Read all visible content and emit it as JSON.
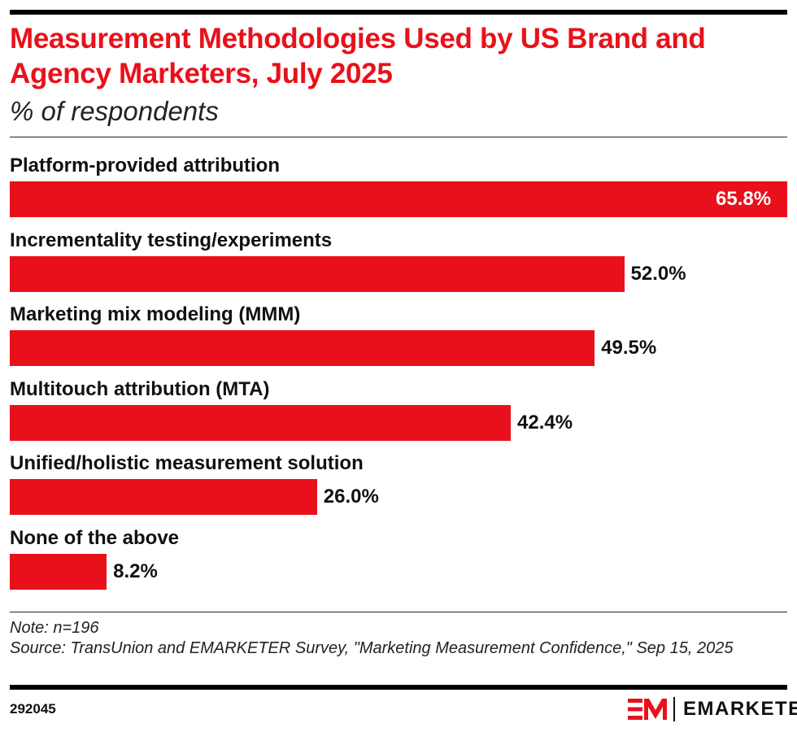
{
  "header": {
    "title": "Measurement Methodologies Used by US Brand and Agency Marketers, July 2025",
    "subtitle": "% of respondents"
  },
  "chart_data": {
    "type": "bar",
    "orientation": "horizontal",
    "categories": [
      "Platform-provided attribution",
      "Incrementality testing/experiments",
      "Marketing mix modeling (MMM)",
      "Multitouch attribution (MTA)",
      "Unified/holistic measurement solution",
      "None of the above"
    ],
    "values": [
      65.8,
      52.0,
      49.5,
      42.4,
      26.0,
      8.2
    ],
    "data_labels": [
      "65.8%",
      "52.0%",
      "49.5%",
      "42.4%",
      "26.0%",
      "8.2%"
    ],
    "xlim": [
      0,
      65.8
    ],
    "grid": false,
    "bar_color": "#e8111b"
  },
  "footer": {
    "note": "Note: n=196",
    "source": "Source: TransUnion and EMARKETER Survey, \"Marketing Measurement Confidence,\" Sep 15, 2025",
    "id": "292045",
    "brand": "EMARKETER",
    "brand_color": "#e8111b"
  }
}
